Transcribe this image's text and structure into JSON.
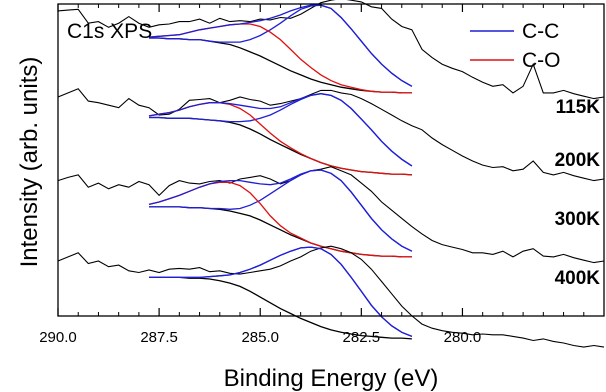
{
  "chart_data": {
    "type": "line",
    "title": "C1s XPS",
    "xlabel": "Binding Energy (eV)",
    "ylabel": "Intensity (arb. units)",
    "x_reversed": true,
    "xlim": [
      290.0,
      276.5
    ],
    "xticks": [
      {
        "value": 290.0,
        "label": "290.0"
      },
      {
        "value": 287.5,
        "label": "287.5"
      },
      {
        "value": 285.0,
        "label": "285.0"
      },
      {
        "value": 282.5,
        "label": "282.5"
      },
      {
        "value": 280.0,
        "label": "280.0"
      }
    ],
    "legend": {
      "placement": "top-right",
      "entries": [
        {
          "label": "C-C",
          "color": "#1f1fd6"
        },
        {
          "label": "C-O",
          "color": "#e01010"
        }
      ]
    },
    "grid": false,
    "y_tick_labels": false,
    "spectra": [
      {
        "label": "115K",
        "offset": 3.0,
        "raw": {
          "start": 290.0,
          "end": 276.5,
          "step": 0.25,
          "y": [
            1.05,
            1.06,
            1.07,
            0.9,
            0.92,
            0.85,
            0.9,
            0.98,
            0.9,
            0.85,
            0.88,
            0.89,
            0.92,
            0.92,
            0.95,
            0.9,
            0.96,
            0.92,
            0.93,
            0.92,
            0.95,
            0.94,
            0.97,
            0.96,
            1.01,
            1.08,
            1.15,
            1.18,
            1.2,
            1.18,
            1.16,
            1.1,
            1.08,
            0.95,
            0.86,
            0.82,
            0.58,
            0.48,
            0.4,
            0.35,
            0.31,
            0.24,
            0.18,
            0.13,
            0.15,
            0.05,
            0.13,
            0.4,
            0.05,
            0.05,
            0.08,
            0.04,
            0.01,
            -0.02,
            0.0
          ]
        },
        "background": {
          "start": 287.75,
          "end": 281.25,
          "step": 0.25,
          "y": [
            0.72,
            0.72,
            0.71,
            0.71,
            0.7,
            0.7,
            0.68,
            0.66,
            0.64,
            0.6,
            0.55,
            0.5,
            0.44,
            0.38,
            0.32,
            0.27,
            0.22,
            0.18,
            0.15,
            0.12,
            0.1,
            0.08,
            0.07,
            0.06,
            0.06,
            0.05,
            0.05
          ]
        },
        "envelope": {
          "start": 287.75,
          "end": 281.25,
          "step": 0.25,
          "y": [
            0.73,
            0.74,
            0.75,
            0.76,
            0.79,
            0.82,
            0.84,
            0.86,
            0.88,
            0.89,
            0.91,
            0.93,
            0.96,
            1.0,
            1.05,
            1.09,
            1.12,
            1.12,
            1.08,
            0.97,
            0.83,
            0.68,
            0.53,
            0.4,
            0.29,
            0.2,
            0.13
          ]
        },
        "components": [
          {
            "name": "C-C",
            "start": 287.75,
            "end": 281.25,
            "step": 0.25,
            "y": [
              0.72,
              0.72,
              0.71,
              0.71,
              0.7,
              0.7,
              0.68,
              0.67,
              0.67,
              0.67,
              0.7,
              0.75,
              0.82,
              0.9,
              0.99,
              1.07,
              1.11,
              1.12,
              1.08,
              0.97,
              0.83,
              0.68,
              0.53,
              0.4,
              0.29,
              0.2,
              0.13
            ]
          },
          {
            "name": "C-O",
            "start": 287.75,
            "end": 281.25,
            "step": 0.25,
            "y": [
              0.73,
              0.74,
              0.75,
              0.76,
              0.79,
              0.82,
              0.84,
              0.86,
              0.88,
              0.89,
              0.89,
              0.86,
              0.79,
              0.7,
              0.58,
              0.46,
              0.36,
              0.27,
              0.2,
              0.15,
              0.12,
              0.09,
              0.07,
              0.06,
              0.06,
              0.05,
              0.05
            ]
          }
        ]
      },
      {
        "label": "200K",
        "offset": 2.0,
        "raw": {
          "start": 290.0,
          "end": 276.5,
          "step": 0.25,
          "y": [
            1.0,
            1.05,
            1.1,
            0.95,
            0.93,
            0.9,
            0.87,
            0.98,
            0.9,
            0.87,
            0.78,
            0.79,
            0.85,
            0.96,
            0.97,
            0.98,
            0.93,
            0.96,
            1.0,
            0.97,
            0.95,
            0.9,
            0.92,
            0.95,
            0.98,
            1.03,
            1.08,
            1.08,
            1.05,
            1.03,
            0.98,
            0.92,
            0.85,
            0.78,
            0.71,
            0.65,
            0.6,
            0.5,
            0.42,
            0.35,
            0.28,
            0.22,
            0.17,
            0.14,
            0.15,
            0.1,
            0.12,
            0.22,
            0.08,
            0.05,
            0.08,
            0.04,
            0.01,
            -0.02,
            0.0
          ]
        },
        "background": {
          "start": 287.75,
          "end": 281.25,
          "step": 0.25,
          "y": [
            0.75,
            0.75,
            0.74,
            0.74,
            0.74,
            0.73,
            0.72,
            0.71,
            0.69,
            0.66,
            0.61,
            0.55,
            0.48,
            0.42,
            0.36,
            0.3,
            0.25,
            0.2,
            0.16,
            0.13,
            0.11,
            0.09,
            0.08,
            0.07,
            0.06,
            0.06,
            0.05
          ]
        },
        "envelope": {
          "start": 287.75,
          "end": 281.25,
          "step": 0.25,
          "y": [
            0.77,
            0.79,
            0.81,
            0.84,
            0.88,
            0.91,
            0.93,
            0.93,
            0.92,
            0.9,
            0.88,
            0.86,
            0.86,
            0.88,
            0.93,
            0.98,
            1.02,
            1.04,
            1.02,
            0.96,
            0.86,
            0.73,
            0.6,
            0.46,
            0.34,
            0.24,
            0.16
          ]
        },
        "components": [
          {
            "name": "C-C",
            "start": 287.75,
            "end": 281.25,
            "step": 0.25,
            "y": [
              0.75,
              0.75,
              0.74,
              0.74,
              0.74,
              0.73,
              0.72,
              0.71,
              0.7,
              0.7,
              0.71,
              0.74,
              0.78,
              0.84,
              0.91,
              0.97,
              1.02,
              1.04,
              1.02,
              0.96,
              0.86,
              0.73,
              0.6,
              0.46,
              0.34,
              0.24,
              0.16
            ]
          },
          {
            "name": "C-O",
            "start": 287.75,
            "end": 281.25,
            "step": 0.25,
            "y": [
              0.77,
              0.79,
              0.81,
              0.84,
              0.88,
              0.91,
              0.93,
              0.93,
              0.91,
              0.86,
              0.78,
              0.67,
              0.56,
              0.46,
              0.38,
              0.31,
              0.25,
              0.2,
              0.16,
              0.13,
              0.11,
              0.09,
              0.08,
              0.07,
              0.06,
              0.06,
              0.05
            ]
          }
        ]
      },
      {
        "label": "300K",
        "offset": 1.0,
        "raw": {
          "start": 290.0,
          "end": 276.5,
          "step": 0.25,
          "y": [
            0.98,
            1.02,
            1.05,
            0.9,
            0.95,
            0.88,
            0.93,
            0.9,
            0.97,
            0.93,
            0.8,
            0.92,
            0.98,
            0.95,
            0.94,
            0.97,
            0.98,
            0.95,
            1.0,
            1.02,
            1.04,
            1.0,
            0.94,
            0.98,
            1.05,
            1.1,
            1.12,
            1.15,
            1.1,
            1.05,
            0.95,
            0.85,
            0.72,
            0.62,
            0.52,
            0.42,
            0.33,
            0.25,
            0.2,
            0.17,
            0.14,
            0.1,
            0.1,
            0.08,
            0.12,
            0.05,
            0.12,
            0.15,
            0.06,
            0.05,
            0.08,
            0.04,
            0.01,
            -0.02,
            0.0
          ]
        },
        "background": {
          "start": 287.75,
          "end": 281.25,
          "step": 0.25,
          "y": [
            0.66,
            0.66,
            0.66,
            0.66,
            0.65,
            0.65,
            0.64,
            0.63,
            0.61,
            0.58,
            0.55,
            0.5,
            0.44,
            0.38,
            0.32,
            0.27,
            0.22,
            0.18,
            0.15,
            0.12,
            0.1,
            0.08,
            0.07,
            0.06,
            0.06,
            0.05,
            0.05
          ]
        },
        "envelope": {
          "start": 287.75,
          "end": 281.25,
          "step": 0.25,
          "y": [
            0.69,
            0.72,
            0.76,
            0.8,
            0.85,
            0.9,
            0.94,
            0.97,
            0.98,
            0.98,
            0.96,
            0.94,
            0.93,
            0.95,
            1.0,
            1.06,
            1.1,
            1.11,
            1.07,
            0.98,
            0.84,
            0.68,
            0.52,
            0.38,
            0.27,
            0.18,
            0.12
          ]
        },
        "components": [
          {
            "name": "C-C",
            "start": 287.75,
            "end": 281.25,
            "step": 0.25,
            "y": [
              0.66,
              0.66,
              0.66,
              0.66,
              0.65,
              0.65,
              0.64,
              0.64,
              0.63,
              0.64,
              0.68,
              0.74,
              0.82,
              0.9,
              0.98,
              1.05,
              1.1,
              1.11,
              1.07,
              0.98,
              0.84,
              0.68,
              0.52,
              0.38,
              0.27,
              0.18,
              0.12
            ]
          },
          {
            "name": "C-O",
            "start": 287.75,
            "end": 281.25,
            "step": 0.25,
            "y": [
              0.69,
              0.72,
              0.76,
              0.8,
              0.85,
              0.9,
              0.94,
              0.96,
              0.96,
              0.92,
              0.83,
              0.7,
              0.55,
              0.43,
              0.34,
              0.28,
              0.22,
              0.18,
              0.15,
              0.12,
              0.1,
              0.08,
              0.07,
              0.06,
              0.06,
              0.05,
              0.05
            ]
          }
        ]
      },
      {
        "label": "400K",
        "offset": 0.0,
        "raw": {
          "start": 290.0,
          "end": 276.5,
          "step": 0.25,
          "y": [
            1.0,
            1.05,
            1.1,
            0.97,
            1.0,
            0.93,
            0.95,
            0.88,
            0.86,
            0.89,
            0.86,
            0.9,
            0.91,
            0.9,
            0.92,
            0.87,
            0.88,
            0.85,
            0.84,
            0.86,
            0.88,
            0.9,
            0.94,
            1.0,
            1.05,
            1.12,
            1.16,
            1.18,
            1.15,
            1.1,
            1.02,
            0.9,
            0.75,
            0.6,
            0.45,
            0.33,
            0.23,
            0.18,
            0.15,
            0.13,
            0.12,
            0.1,
            0.11,
            0.1,
            0.1,
            0.08,
            0.06,
            0.03,
            0.05,
            0.02,
            0.0,
            -0.03,
            -0.05,
            -0.03,
            -0.05
          ]
        },
        "background": {
          "start": 287.75,
          "end": 281.25,
          "step": 0.25,
          "y": [
            0.8,
            0.8,
            0.8,
            0.8,
            0.79,
            0.79,
            0.78,
            0.76,
            0.73,
            0.69,
            0.63,
            0.56,
            0.49,
            0.42,
            0.36,
            0.3,
            0.25,
            0.2,
            0.16,
            0.13,
            0.11,
            0.09,
            0.08,
            0.07,
            0.06,
            0.06,
            0.05
          ]
        },
        "envelope": {
          "start": 287.75,
          "end": 281.25,
          "step": 0.25,
          "y": [
            0.8,
            0.8,
            0.8,
            0.8,
            0.8,
            0.8,
            0.81,
            0.82,
            0.83,
            0.86,
            0.9,
            0.95,
            1.01,
            1.07,
            1.12,
            1.16,
            1.17,
            1.15,
            1.08,
            0.96,
            0.8,
            0.63,
            0.46,
            0.32,
            0.21,
            0.13,
            0.08
          ]
        },
        "components": [
          {
            "name": "C-C",
            "start": 287.75,
            "end": 281.25,
            "step": 0.25,
            "y": [
              0.8,
              0.8,
              0.8,
              0.8,
              0.8,
              0.8,
              0.81,
              0.82,
              0.83,
              0.86,
              0.9,
              0.95,
              1.01,
              1.07,
              1.12,
              1.16,
              1.17,
              1.15,
              1.08,
              0.96,
              0.8,
              0.63,
              0.46,
              0.32,
              0.21,
              0.13,
              0.08
            ]
          }
        ]
      }
    ]
  }
}
